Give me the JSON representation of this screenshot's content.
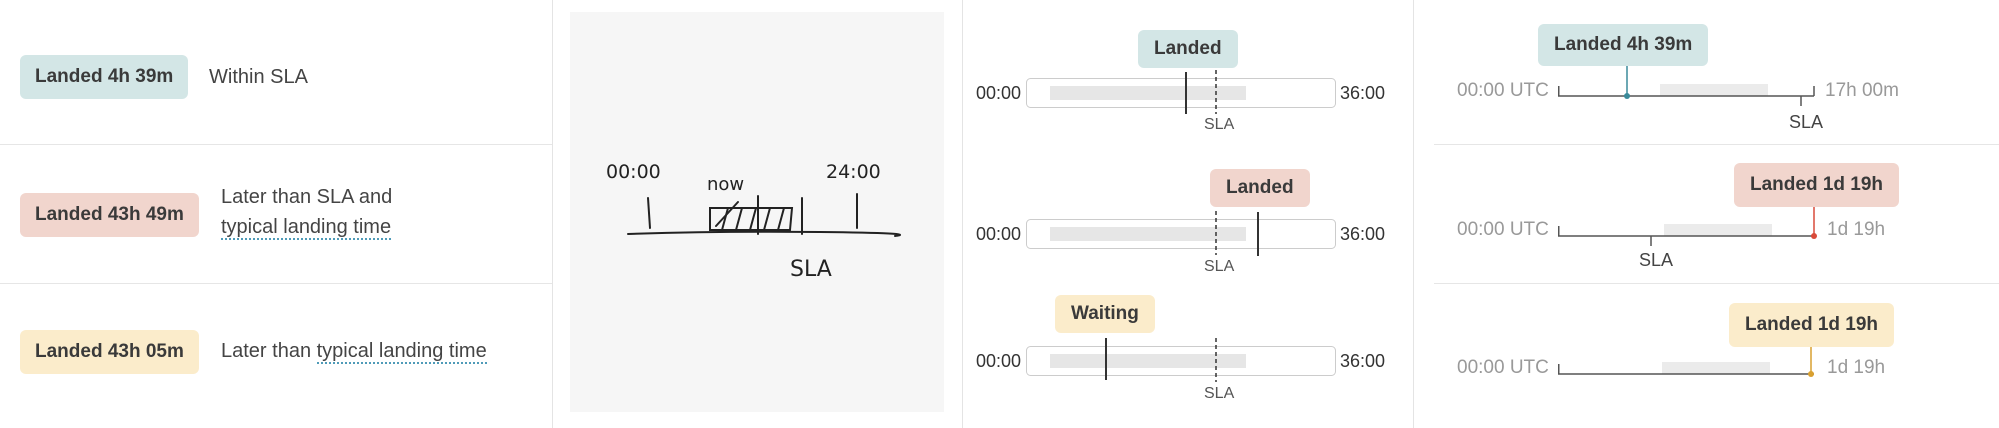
{
  "colors": {
    "teal": "#d3e6e6",
    "salmon": "#f1d5cd",
    "cream": "#fbeccb",
    "teal_marker": "#3a8a9a",
    "red_marker": "#d94a3a",
    "amber_marker": "#d9a030"
  },
  "rows": [
    {
      "badge": "Landed 4h 39m",
      "desc_plain": "Within SLA"
    },
    {
      "badge": "Landed 43h 49m",
      "desc_line1": "Later than SLA and",
      "desc_link": "typical landing time"
    },
    {
      "badge": "Landed 43h 05m",
      "desc_prefix": "Later than ",
      "desc_link": "typical landing time"
    }
  ],
  "sketch": {
    "start": "00:00",
    "now": "now",
    "end": "24:00",
    "sla": "SLA"
  },
  "middle": [
    {
      "badge": "Landed",
      "start": "00:00",
      "end": "36:00",
      "sla": "SLA"
    },
    {
      "badge": "Landed",
      "start": "00:00",
      "end": "36:00",
      "sla": "SLA"
    },
    {
      "badge": "Waiting",
      "start": "00:00",
      "end": "36:00",
      "sla": "SLA"
    }
  ],
  "right": [
    {
      "badge": "Landed 4h 39m",
      "start": "00:00 UTC",
      "end": "17h 00m",
      "sla": "SLA"
    },
    {
      "badge": "Landed 1d 19h",
      "start": "00:00 UTC",
      "end": "1d 19h",
      "sla": "SLA"
    },
    {
      "badge": "Landed 1d 19h",
      "start": "00:00 UTC",
      "end": "1d 19h"
    }
  ]
}
